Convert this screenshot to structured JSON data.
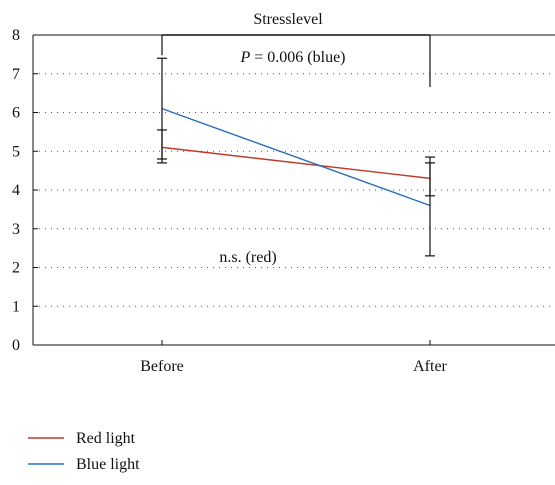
{
  "chart_data": {
    "type": "line",
    "title": "Stresslevel",
    "categories": [
      "Before",
      "After"
    ],
    "ylim": [
      0,
      8
    ],
    "yticks": [
      0,
      1,
      2,
      3,
      4,
      5,
      6,
      7,
      8
    ],
    "grid": "dotted horizontal",
    "series": [
      {
        "name": "Red light",
        "color": "#c0392b",
        "values": [
          5.1,
          4.3
        ],
        "err_low": [
          4.7,
          3.85
        ],
        "err_high": [
          5.55,
          4.85
        ]
      },
      {
        "name": "Blue light",
        "color": "#2a6ebb",
        "values": [
          6.1,
          3.6
        ],
        "err_low": [
          4.8,
          2.3
        ],
        "err_high": [
          7.4,
          4.7
        ]
      }
    ],
    "annotations": {
      "blue_p_prefix": "P",
      "blue_p_suffix": " = 0.006 (blue)",
      "red_ns": "n.s. (red)"
    },
    "legend_position": "bottom-left"
  }
}
